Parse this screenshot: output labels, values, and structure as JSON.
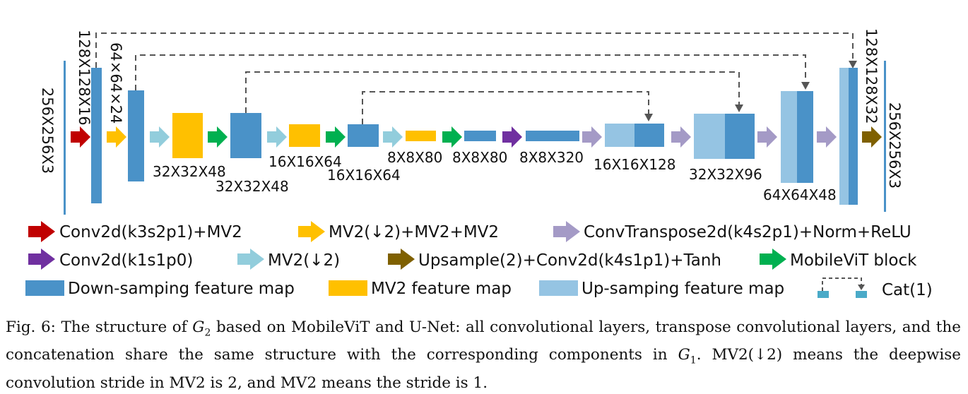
{
  "colors": {
    "down": "#4a92c8",
    "mv2_fm": "#ffc000",
    "up": "#95c4e3",
    "red": "#c00000",
    "yellow": "#ffc000",
    "lilac": "#a49ac6",
    "purple": "#7030a0",
    "lightblue": "#92cddc",
    "brown": "#7f6000",
    "green": "#00b050",
    "input_line": "#4a92c8"
  },
  "labels": {
    "input": "256X256X3",
    "l128": "128X128X16",
    "l64": "64×64×24",
    "l32a": "32X32X48",
    "l32b": "32X32X48",
    "l16a": "16X16X64",
    "l16b": "16X16X64",
    "l8a": "8X8X80",
    "l8b": "8X8X80",
    "l8c": "8X8X320",
    "u16": "16X16X128",
    "u32": "32X32X96",
    "u64": "64X64X48",
    "u128": "128X128X32",
    "output": "256X256X3"
  },
  "legend": {
    "red": "Conv2d(k3s2p1)+MV2",
    "yellow": "MV2(↓2)+MV2+MV2",
    "lilac": "ConvTranspose2d(k4s2p1)+Norm+ReLU",
    "purple": "Conv2d(k1s1p0)",
    "lightblue": "MV2(↓2)",
    "brown": "Upsample(2)+Conv2d(k4s1p1)+Tanh",
    "green": "MobileViT block",
    "down_fm": "Down-samping feature map",
    "mv2_fm": "MV2 feature map",
    "up_fm": "Up-samping feature map",
    "cat": "Cat(1)"
  },
  "caption": {
    "fig": "Fig. 6:",
    "p1": "The structure of",
    "g": "G",
    "g2sub": "2",
    "p2": "based on MobileViT and U-Net: all convolutional layers, transpose convolutional layers, and the concatenation share the same structure with the corresponding components in",
    "g1sub": "1",
    "p3": ". MV2(↓2) means the deepwise convolution stride in MV2 is 2, and MV2 means the stride is 1."
  }
}
